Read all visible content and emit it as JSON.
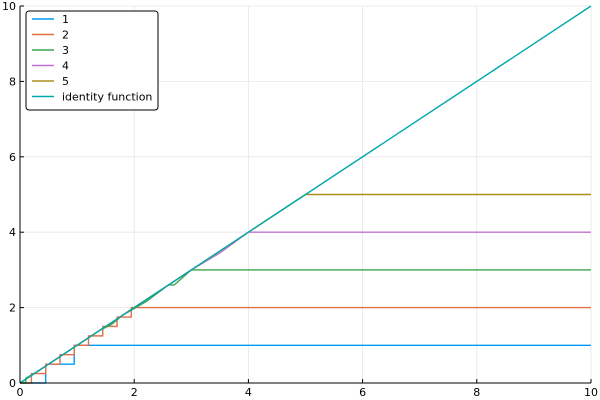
{
  "chart_data": {
    "type": "line",
    "title": "",
    "xlabel": "",
    "ylabel": "",
    "xlim": [
      0,
      10
    ],
    "ylim": [
      0,
      10
    ],
    "x_ticks": [
      0,
      2,
      4,
      6,
      8,
      10
    ],
    "y_ticks": [
      0,
      2,
      4,
      6,
      8,
      10
    ],
    "grid": true,
    "legend_position": "top-left",
    "series": [
      {
        "name": "1",
        "color": "#009AF9",
        "points": [
          [
            0,
            0
          ],
          [
            0.45,
            0
          ],
          [
            0.45,
            0.5
          ],
          [
            0.95,
            0.5
          ],
          [
            0.95,
            1
          ],
          [
            10,
            1
          ]
        ]
      },
      {
        "name": "2",
        "color": "#E36F47",
        "points": [
          [
            0,
            0
          ],
          [
            0.2,
            0
          ],
          [
            0.2,
            0.25
          ],
          [
            0.45,
            0.25
          ],
          [
            0.45,
            0.5
          ],
          [
            0.7,
            0.5
          ],
          [
            0.7,
            0.75
          ],
          [
            0.95,
            0.75
          ],
          [
            0.95,
            1
          ],
          [
            1.2,
            1
          ],
          [
            1.2,
            1.25
          ],
          [
            1.45,
            1.25
          ],
          [
            1.45,
            1.5
          ],
          [
            1.7,
            1.5
          ],
          [
            1.7,
            1.75
          ],
          [
            1.95,
            1.75
          ],
          [
            1.95,
            2
          ],
          [
            10,
            2
          ]
        ]
      },
      {
        "name": "3",
        "color": "#3EA44E",
        "points": [
          [
            0,
            0
          ],
          [
            0.1,
            0
          ],
          [
            0.1,
            0.125
          ],
          [
            0.3,
            0.3
          ],
          [
            0.5,
            0.5
          ],
          [
            0.8,
            0.8
          ],
          [
            1.0,
            1.0
          ],
          [
            1.4,
            1.4
          ],
          [
            1.6,
            1.55
          ],
          [
            1.8,
            1.8
          ],
          [
            2.2,
            2.15
          ],
          [
            2.6,
            2.6
          ],
          [
            2.7,
            2.6
          ],
          [
            3.0,
            3.0
          ],
          [
            10,
            3
          ]
        ]
      },
      {
        "name": "4",
        "color": "#C271D2",
        "points": [
          [
            0,
            0
          ],
          [
            0.5,
            0.5
          ],
          [
            1.0,
            1.0
          ],
          [
            2.0,
            2.0
          ],
          [
            3.0,
            3.0
          ],
          [
            3.5,
            3.45
          ],
          [
            4.0,
            4.0
          ],
          [
            10,
            4
          ]
        ]
      },
      {
        "name": "5",
        "color": "#AC8E18",
        "points": [
          [
            0,
            0
          ],
          [
            1.0,
            1.0
          ],
          [
            2.0,
            2.0
          ],
          [
            3.0,
            3.0
          ],
          [
            4.0,
            4.0
          ],
          [
            5.0,
            5.0
          ],
          [
            10,
            5
          ]
        ]
      },
      {
        "name": "identity function",
        "color": "#00A9AD",
        "points": [
          [
            0,
            0
          ],
          [
            10,
            10
          ]
        ]
      }
    ]
  }
}
